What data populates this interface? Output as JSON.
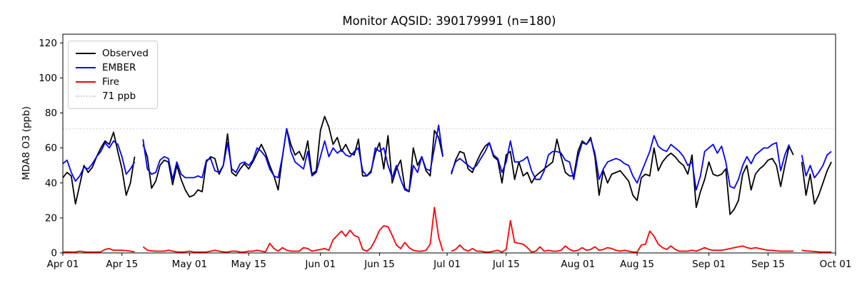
{
  "title": "Monitor AQSID: 390179991 (n=180)",
  "legend": {
    "items": [
      {
        "label": "Observed",
        "swatch": "solid",
        "color": "#000000"
      },
      {
        "label": "EMBER",
        "swatch": "solid",
        "color": "#0000ff"
      },
      {
        "label": "Fire",
        "swatch": "solid",
        "color": "#ff0000"
      },
      {
        "label": "71 ppb",
        "swatch": "dotted",
        "color": "#d3d3d3"
      }
    ]
  },
  "chart_data": {
    "type": "line",
    "title": "Monitor AQSID: 390179991 (n=180)",
    "xlabel": "",
    "ylabel": "MDA8 O3 (ppb)",
    "ylim": [
      0,
      125
    ],
    "yticks": [
      0,
      20,
      40,
      60,
      80,
      100,
      120
    ],
    "xlim_days": [
      0,
      183
    ],
    "xtick_days": [
      0,
      14,
      30,
      44,
      61,
      75,
      91,
      105,
      122,
      136,
      153,
      167,
      183
    ],
    "xtick_labels": [
      "Apr 01",
      "Apr 15",
      "May 01",
      "May 15",
      "Jun 01",
      "Jun 15",
      "Jul 01",
      "Jul 15",
      "Aug 01",
      "Aug 15",
      "Sep 01",
      "Sep 15",
      "Oct 01"
    ],
    "grid": false,
    "legend_position": "upper left",
    "threshold": {
      "value": 71,
      "label": "71 ppb",
      "color": "#d3d3d3",
      "style": "dotted"
    },
    "series": [
      {
        "name": "Observed",
        "color": "#000000",
        "values": [
          43,
          46,
          44,
          28,
          39,
          50,
          46,
          49,
          55,
          60,
          64,
          62,
          69,
          58,
          48,
          33,
          40,
          55,
          null,
          62,
          55,
          37,
          41,
          50,
          53,
          52,
          39,
          50,
          42,
          36,
          32,
          33,
          36,
          35,
          52,
          55,
          54,
          45,
          50,
          68,
          46,
          44,
          48,
          51,
          48,
          52,
          57,
          62,
          57,
          50,
          44,
          36,
          55,
          71,
          62,
          56,
          58,
          53,
          64,
          45,
          47,
          70,
          78,
          72,
          62,
          66,
          58,
          62,
          57,
          56,
          65,
          44,
          44,
          47,
          57,
          63,
          48,
          67,
          40,
          48,
          53,
          37,
          35,
          60,
          50,
          55,
          47,
          44,
          70,
          66,
          55,
          null,
          45,
          53,
          58,
          57,
          48,
          46,
          52,
          57,
          61,
          63,
          55,
          53,
          40,
          56,
          58,
          42,
          52,
          44,
          46,
          40,
          44,
          46,
          48,
          50,
          52,
          65,
          55,
          46,
          44,
          44,
          58,
          64,
          62,
          66,
          55,
          33,
          47,
          40,
          45,
          46,
          47,
          44,
          41,
          33,
          30,
          43,
          45,
          44,
          60,
          47,
          52,
          55,
          57,
          55,
          52,
          50,
          45,
          56,
          26,
          35,
          42,
          52,
          45,
          44,
          45,
          48,
          22,
          25,
          30,
          45,
          50,
          36,
          45,
          48,
          50,
          53,
          54,
          50,
          38,
          50,
          61,
          56,
          null,
          52,
          33,
          45,
          28,
          33,
          40,
          47,
          52
        ]
      },
      {
        "name": "EMBER",
        "color": "#0000ff",
        "values": [
          51,
          53,
          46,
          41,
          44,
          49,
          48,
          51,
          55,
          58,
          63,
          60,
          64,
          62,
          55,
          45,
          48,
          52,
          null,
          65,
          48,
          45,
          46,
          53,
          55,
          54,
          42,
          52,
          45,
          43,
          43,
          43,
          44,
          43,
          53,
          54,
          47,
          46,
          50,
          63,
          48,
          46,
          51,
          52,
          50,
          53,
          60,
          58,
          55,
          48,
          44,
          43,
          55,
          71,
          58,
          52,
          50,
          48,
          58,
          44,
          46,
          55,
          64,
          55,
          60,
          57,
          59,
          56,
          55,
          58,
          60,
          47,
          44,
          46,
          60,
          58,
          60,
          50,
          43,
          50,
          42,
          36,
          35,
          50,
          46,
          55,
          48,
          47,
          60,
          73,
          55,
          null,
          46,
          52,
          54,
          52,
          50,
          48,
          50,
          54,
          58,
          63,
          56,
          54,
          46,
          52,
          64,
          52,
          52,
          53,
          55,
          47,
          42,
          42,
          47,
          56,
          58,
          58,
          57,
          53,
          52,
          42,
          55,
          63,
          62,
          65,
          57,
          42,
          48,
          52,
          53,
          54,
          53,
          51,
          50,
          44,
          40,
          46,
          52,
          58,
          67,
          61,
          59,
          58,
          62,
          60,
          58,
          55,
          50,
          52,
          36,
          44,
          58,
          60,
          62,
          57,
          61,
          52,
          38,
          37,
          42,
          50,
          55,
          51,
          56,
          58,
          60,
          60,
          62,
          63,
          47,
          56,
          62,
          null,
          null,
          56,
          44,
          50,
          43,
          46,
          50,
          56,
          58
        ]
      },
      {
        "name": "Fire",
        "color": "#ff0000",
        "values": [
          0.5,
          0.6,
          0.5,
          0.5,
          1,
          0.6,
          0.5,
          0.5,
          0.5,
          0.6,
          2,
          2.5,
          1.5,
          1.6,
          1.5,
          1.4,
          1,
          0.6,
          null,
          3.5,
          1.6,
          1.2,
          1,
          1,
          1,
          1.5,
          1,
          0.6,
          0.5,
          0.6,
          1,
          0.5,
          0.5,
          0.5,
          0.5,
          1,
          1.5,
          1,
          0.6,
          0.5,
          1,
          1,
          0.5,
          0.5,
          1,
          1,
          1.5,
          1,
          0.6,
          5.5,
          2.5,
          1,
          3,
          1.5,
          1,
          1,
          1,
          3,
          2.5,
          1,
          1.5,
          2,
          2.5,
          1.5,
          7.5,
          10,
          12.5,
          9.5,
          13,
          10,
          9,
          2,
          1,
          3,
          7.5,
          13,
          15.5,
          15,
          10,
          4.5,
          2.5,
          6,
          3,
          1.5,
          1,
          1,
          1.5,
          5,
          26,
          9,
          1,
          null,
          1,
          2,
          4.5,
          2,
          1,
          2.5,
          1,
          1,
          0.5,
          0.5,
          1,
          1.5,
          0.5,
          2,
          18.5,
          6,
          5.5,
          5,
          3,
          0.5,
          1,
          3.5,
          1,
          1.5,
          1,
          1,
          1.5,
          4,
          2,
          1,
          1.5,
          3,
          1.5,
          2,
          3.5,
          1.5,
          2,
          3,
          2.5,
          1.5,
          1,
          1.5,
          1,
          0.5,
          0.5,
          4.5,
          5,
          12.5,
          9.5,
          5,
          3,
          2,
          4,
          2,
          1,
          1,
          1,
          1.5,
          1,
          2,
          3,
          2,
          1.5,
          1.5,
          1.5,
          2,
          2.5,
          3,
          3.5,
          4,
          3,
          2.5,
          3,
          2.5,
          2,
          1.5,
          1.5,
          1.2,
          1,
          1,
          1,
          1,
          null,
          1.5,
          1.2,
          1,
          0.8,
          0.6,
          0.5,
          0.5,
          0.5
        ]
      }
    ]
  }
}
